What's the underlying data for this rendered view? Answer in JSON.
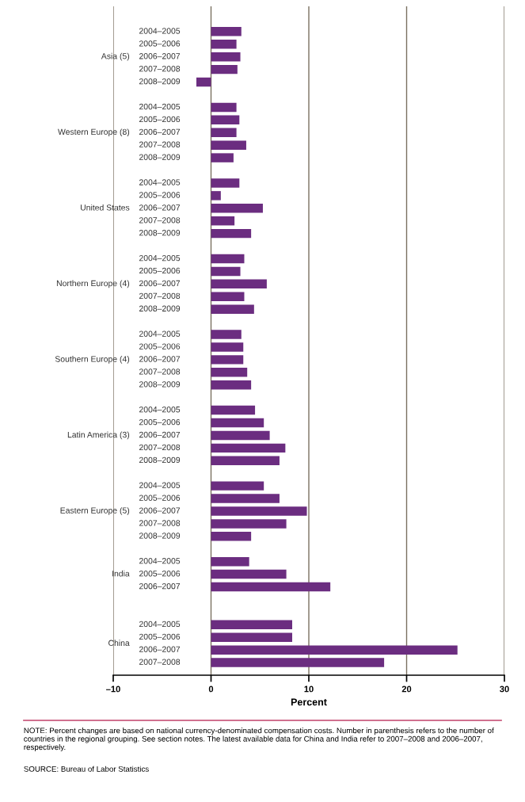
{
  "chart_data": {
    "type": "bar",
    "orientation": "horizontal",
    "xlabel": "Percent",
    "color": "#6b2d80",
    "categories": [
      null,
      "2004–2005",
      "2005–2006",
      "2006–2007",
      "2007–2008",
      "2008–2009",
      null,
      "2004–2005",
      "2005–2006",
      "2006–2007",
      "2007–2008",
      "2008–2009",
      null,
      "2004–2005",
      "2005–2006",
      "2006–2007",
      "2007–2008",
      "2008–2009",
      null,
      "2004–2005",
      "2005–2006",
      "2006–2007",
      "2007–2008",
      "2008–2009",
      null,
      "2004–2005",
      "2005–2006",
      "2006–2007",
      "2007–2008",
      "2008–2009",
      null,
      "2004–2005",
      "2005–2006",
      "2006–2007",
      "2007–2008",
      "2008–2009",
      null,
      "2004–2005",
      "2005–2006",
      "2006–2007",
      "2007–2008",
      "2008–2009",
      null,
      "2004–2005",
      "2005–2006",
      "2006–2007",
      null,
      null,
      "2004–2005",
      "2005–2006",
      "2006–2007",
      "2007–2008"
    ],
    "values": [
      null,
      3.1,
      2.6,
      3.0,
      2.7,
      -1.5,
      null,
      2.6,
      2.9,
      2.6,
      3.6,
      2.3,
      null,
      2.9,
      1.0,
      5.3,
      2.4,
      4.1,
      null,
      3.4,
      3.0,
      5.7,
      3.4,
      4.4,
      null,
      3.1,
      3.3,
      3.3,
      3.7,
      4.1,
      null,
      4.5,
      5.4,
      6.0,
      7.6,
      7.0,
      null,
      5.4,
      7.0,
      9.8,
      7.7,
      4.1,
      null,
      3.9,
      7.7,
      12.2,
      null,
      null,
      8.3,
      8.3,
      25.2,
      17.7
    ],
    "xlim": [
      -10,
      30
    ],
    "xticks": [
      {
        "value": -10,
        "label": "–10"
      },
      0,
      10,
      20,
      30
    ],
    "grid": "x",
    "annotations": [
      "Asia (5)",
      "Western Europe (8)",
      "United States",
      "Northern Europe (4)",
      "Southern Europe (4)",
      "Latin America (3)",
      "Eastern Europe (5)",
      "India",
      "China",
      "NOTE: Percent changes are based on national currency-denominated compensation costs. Number in parenthesis refers to the number of countries in the regional grouping. See section notes. The latest available data for China and India refer to 2007–2008 and 2006–2007, respectively.",
      "SOURCE: Bureau of Labor Statistics"
    ]
  }
}
